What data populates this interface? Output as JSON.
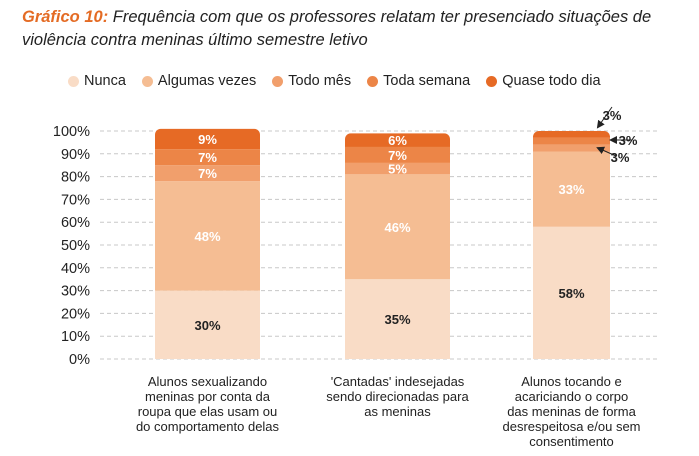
{
  "title": {
    "lead": "Gráfico 10:",
    "text": " Frequência com que os professores relatam ter presenciado situações de violência contra meninas último semestre letivo"
  },
  "chart_data": {
    "type": "bar",
    "stacked": true,
    "title": "Gráfico 10: Frequência com que os professores relatam ter presenciado situações de violência contra meninas último semestre letivo",
    "xlabel": "",
    "ylabel": "",
    "ylim": [
      0,
      100
    ],
    "yticks": [
      "0%",
      "10%",
      "20%",
      "30%",
      "40%",
      "50%",
      "60%",
      "70%",
      "80%",
      "90%",
      "100%"
    ],
    "grid": true,
    "legend_position": "top",
    "categories": [
      "Alunos sexualizando meninas por conta da roupa que elas usam ou do comportamento delas",
      "'Cantadas' indesejadas sendo direcionadas para as meninas",
      "Alunos tocando e acariciando o corpo das meninas de forma desrespeitosa e/ou sem consentimento"
    ],
    "category_lines": [
      [
        "Alunos sexualizando",
        "meninas por conta da",
        "roupa que elas usam ou",
        "do comportamento delas"
      ],
      [
        "'Cantadas' indesejadas",
        "sendo direcionadas para",
        "as meninas"
      ],
      [
        "Alunos tocando e",
        "acariciando o corpo",
        "das meninas de forma",
        "desrespeitosa e/ou sem",
        "consentimento"
      ]
    ],
    "series": [
      {
        "name": "Nunca",
        "color": "#f9dcc6",
        "label_color": "#222222",
        "values": [
          30,
          35,
          58
        ]
      },
      {
        "name": "Algumas vezes",
        "color": "#f5bd93",
        "label_color": "#ffffff",
        "values": [
          48,
          46,
          33
        ]
      },
      {
        "name": "Todo mês",
        "color": "#f19f6c",
        "label_color": "#ffffff",
        "values": [
          7,
          5,
          3
        ]
      },
      {
        "name": "Toda semana",
        "color": "#ec8547",
        "label_color": "#ffffff",
        "values": [
          7,
          7,
          3
        ]
      },
      {
        "name": "Quase todo dia",
        "color": "#e66a25",
        "label_color": "#ffffff",
        "values": [
          9,
          6,
          3
        ]
      }
    ],
    "value_suffix": "%"
  }
}
